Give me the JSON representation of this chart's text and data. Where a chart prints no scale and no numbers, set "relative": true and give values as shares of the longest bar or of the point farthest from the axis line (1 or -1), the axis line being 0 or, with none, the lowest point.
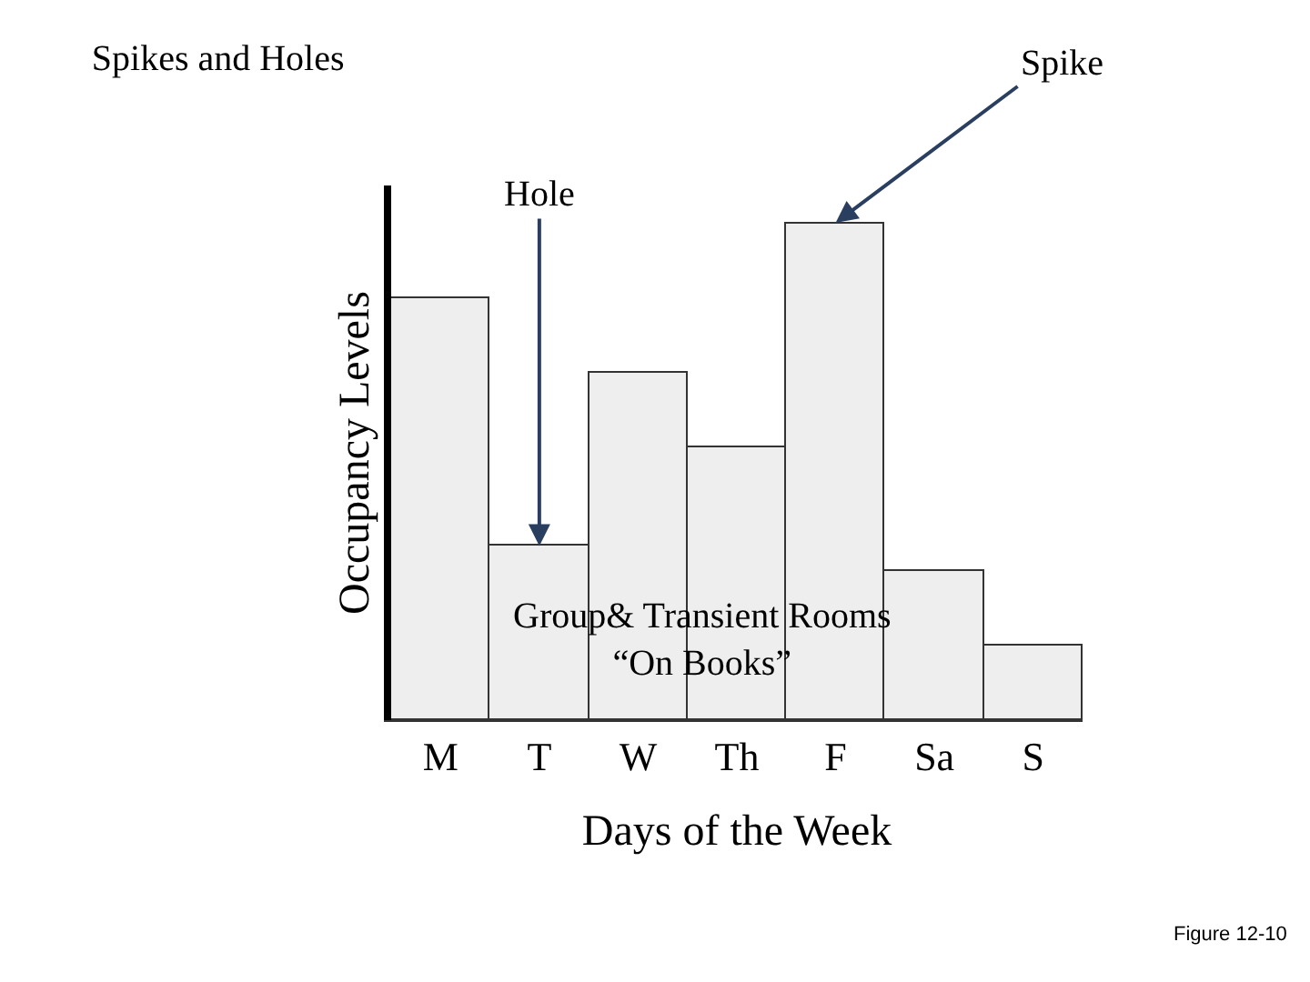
{
  "chart_data": {
    "type": "bar",
    "title": "Spikes and Holes",
    "xlabel": "Days of the Week",
    "ylabel": "Occupancy Levels",
    "categories": [
      "M",
      "T",
      "W",
      "Th",
      "F",
      "Sa",
      "S"
    ],
    "values": [
      0.85,
      0.35,
      0.7,
      0.55,
      1.0,
      0.3,
      0.15
    ],
    "color": "#eeeeee",
    "relative": true,
    "annotations": [
      {
        "text": "Spike",
        "x": "F",
        "y": 1.0
      },
      {
        "text": "Hole",
        "x": "T",
        "y": 0.35
      },
      "Group& Transient Rooms\n“On Books”",
      "Figure 12-10"
    ]
  }
}
